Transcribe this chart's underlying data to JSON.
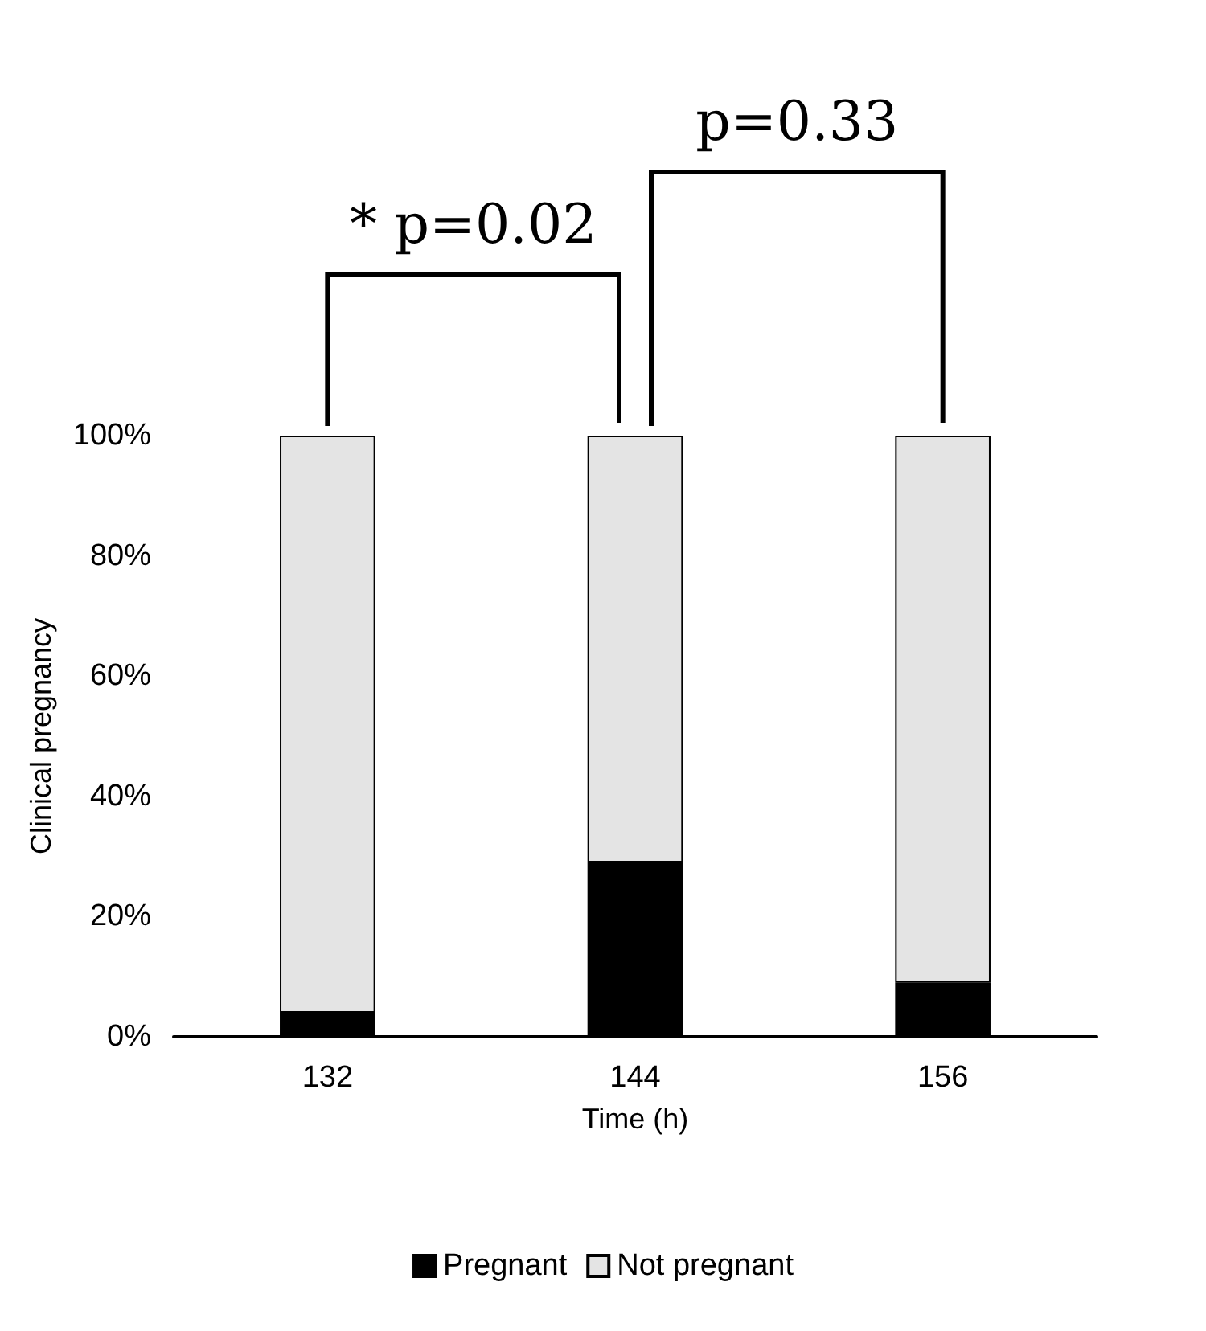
{
  "chart_data": {
    "type": "bar",
    "stacked": true,
    "xlabel": "Time (h)",
    "ylabel": "Clinical pregnancy",
    "categories": [
      "132",
      "144",
      "156"
    ],
    "series": [
      {
        "name": "Pregnant",
        "color": "#000000",
        "values": [
          4,
          29,
          9
        ]
      },
      {
        "name": "Not pregnant",
        "color": "#e4e4e4",
        "values": [
          96,
          71,
          91
        ]
      }
    ],
    "ylim": [
      0,
      100
    ],
    "yticks": [
      {
        "value": 0,
        "label": "0%"
      },
      {
        "value": 20,
        "label": "20%"
      },
      {
        "value": 40,
        "label": "40%"
      },
      {
        "value": 60,
        "label": "60%"
      },
      {
        "value": 80,
        "label": "80%"
      },
      {
        "value": 100,
        "label": "100%"
      }
    ],
    "grid": false,
    "legend": "bottom",
    "annotations": [
      "* p=0.02",
      "p=0.33"
    ]
  }
}
